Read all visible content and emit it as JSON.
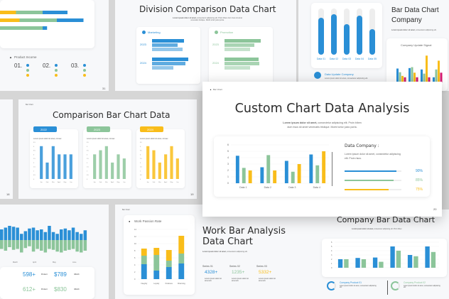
{
  "colors": {
    "blue": "#2a8fd6",
    "green": "#8cc59a",
    "yellow": "#f9bd1a",
    "pink": "#d81b6f",
    "track": "#eeeeee"
  },
  "slide_top_left": {
    "section": "Product Income",
    "items": [
      "01.",
      "02.",
      "03."
    ],
    "page": "31",
    "hbars": [
      [
        0.18,
        0.3,
        0.28
      ],
      [
        0.22,
        0.42,
        0.3
      ],
      [
        0,
        0.48,
        0.05
      ]
    ]
  },
  "slide_division": {
    "title": "Division Comparison Data Chart",
    "subtitle_bold": "Lorem ipsum dolor sit amet,",
    "subtitle": "consectetur adipiscing elit. Proin biben dum risus sit amet venenatis tristique. Morbi tortor justo porta.",
    "panels": [
      {
        "label": "Marketing",
        "color": "#2a8fd6",
        "years": [
          "2023",
          "2024"
        ],
        "values": [
          [
            0.75,
            0.6,
            0.72
          ],
          [
            0.85,
            0.78,
            0.5
          ]
        ]
      },
      {
        "label": "Promotion",
        "color": "#8cc59a",
        "years": [
          "2023",
          "2024"
        ],
        "values": [
          [
            0.85,
            0.7,
            0.6
          ],
          [
            0.8,
            0.82,
            0.6
          ]
        ]
      }
    ]
  },
  "slide_bar_company": {
    "title_line1": "Bar Data Chart",
    "title_line2": "Company",
    "subtitle_bold": "Lorem ipsum dolor sit amet,",
    "subtitle": "consectetur adipiscing elit.",
    "vbars": [
      {
        "label": "Data 01",
        "fill": 0.8
      },
      {
        "label": "Data 02",
        "fill": 0.88
      },
      {
        "label": "Data 03",
        "fill": 0.66
      },
      {
        "label": "Data 04",
        "fill": 0.85
      },
      {
        "label": "Data 05",
        "fill": 0.56
      }
    ],
    "info_title": "Data Update Company",
    "info_text": "Lorem ipsum dolor sit amet, consectetur adipiscing elit.",
    "signal_title": "Company Update Signal",
    "signal": [
      [
        3,
        2.2,
        1.4,
        1.1
      ],
      [
        3.1,
        3.3,
        2.1,
        1.1
      ],
      [
        2.8,
        1.9,
        5.8,
        1.1
      ],
      [
        1.1,
        2.8,
        4.7,
        2.1
      ]
    ]
  },
  "slide_comparison": {
    "tag": "Bar Chart",
    "title": "Comparison Bar Chart Data",
    "page_left": "18",
    "page_right": "19",
    "months": [
      "Jan",
      "Feb",
      "Mar",
      "April",
      "May",
      "Jun"
    ],
    "yticks": [
      "4.5",
      "4",
      "3.5",
      "3",
      "2.5",
      "2",
      "1.5",
      "1",
      "0.5",
      "0"
    ],
    "panels": [
      {
        "year": "2022",
        "color": "#2a8fd6",
        "text": "Lorem ipsum dolor sit amet, consec",
        "values": [
          4,
          2,
          4,
          3,
          3,
          3
        ]
      },
      {
        "year": "2023",
        "color": "#8cc59a",
        "text": "Lorem ipsum dolor sit amet, consec",
        "values": [
          3,
          3.5,
          4,
          2,
          3,
          2.5
        ]
      },
      {
        "year": "2024",
        "color": "#f9bd1a",
        "text": "Lorem ipsum dolor sit amet, consec",
        "values": [
          4,
          3.5,
          2,
          3,
          4,
          2.5
        ]
      }
    ]
  },
  "main": {
    "tag": "Bar Chart",
    "title": "Custom Chart Data Analysis",
    "subtitle_bold": "Lorem ipsum dolor sit amet,",
    "subtitle_1": " consectetur adipiscing elit. Proin biben",
    "subtitle_2": "dum risus sit amet venenatis tristique. Morbi tortor justo porta.",
    "page": "20",
    "right_title": "Data Company :",
    "right_text_1": "Lorem ipsum dolor sit amet, consectetur adipiscing",
    "right_text_2": "elit. Proin risus.",
    "progress": [
      {
        "value": 90,
        "label": "90%",
        "color": "#2a8fd6"
      },
      {
        "value": 85,
        "label": "85%",
        "color": "#8cc59a"
      },
      {
        "value": 75,
        "label": "75%",
        "color": "#f9bd1a"
      }
    ]
  },
  "chart_data": [
    {
      "type": "bar",
      "categories": [
        "Data 1",
        "Data 2",
        "Data 3",
        "Data 4"
      ],
      "ylim": [
        0,
        6
      ],
      "yticks": [
        "6",
        "5",
        "4",
        "3",
        "2",
        "1",
        "0"
      ],
      "series": [
        {
          "values": [
            4.3,
            2.5,
            3.5,
            4.5
          ],
          "color": "#2a8fd6"
        },
        {
          "values": [
            2.4,
            4.4,
            1.8,
            2.8
          ],
          "color": "#8cc59a"
        },
        {
          "values": [
            2.0,
            2.0,
            3.0,
            5.0
          ],
          "color": "#f9bd1a"
        }
      ]
    },
    {
      "type": "bar",
      "stacked": true,
      "title": "Work Passion Rate",
      "categories": [
        "Integrity",
        "Loyalty",
        "Kindness",
        "Charming"
      ],
      "ylim": [
        0,
        14
      ],
      "yticks": [
        "14",
        "12",
        "10",
        "8",
        "6",
        "4",
        "2",
        "0"
      ],
      "series": [
        {
          "name": "Series 01",
          "values": [
            4.2,
            2.4,
            3.4,
            4.4
          ],
          "color": "#2a8fd6"
        },
        {
          "name": "Series 02",
          "values": [
            2.4,
            4.4,
            1.8,
            2.8
          ],
          "color": "#8cc59a"
        },
        {
          "name": "Series 03",
          "values": [
            2.0,
            2.0,
            3.0,
            5.0
          ],
          "color": "#f9bd1a"
        }
      ]
    },
    {
      "type": "bar",
      "ylim": [
        0,
        6
      ],
      "yticks": [
        "6",
        "5",
        "4",
        "3",
        "2",
        "1",
        "0"
      ],
      "series": [
        {
          "values": [
            2,
            2.3,
            2.4,
            5,
            3,
            5
          ],
          "color": "#2a8fd6"
        },
        {
          "values": [
            2,
            2,
            1.4,
            4,
            2.7,
            3.7
          ],
          "color": "#8cc59a"
        }
      ]
    }
  ],
  "slide_work": {
    "tag": "Bar Chart",
    "title_line1": "Work Bar Analysis",
    "title_line2": "Data Chart",
    "subtitle_bold": "Lorem ipsum dolor sit amet,",
    "subtitle": "consectetur adipiscing elit.",
    "stats": [
      {
        "name": "Series 01",
        "value": "4328+",
        "color": "#2a8fd6",
        "text": "Lorem ipsum dolor sit amet elit."
      },
      {
        "name": "Series 02",
        "value": "1235+",
        "color": "#8cc59a",
        "text": "Lorem ipsum dolor sit amet elit."
      },
      {
        "name": "Series 03",
        "value": "5332+",
        "color": "#f9bd1a",
        "text": "Lorem ipsum dolor sit amet elit."
      }
    ]
  },
  "slide_company": {
    "title": "Company Bar Data Chart",
    "subtitle_bold": "Lorem ipsum dolor sit amet,",
    "subtitle": "consectetur adipiscing elit. Proin biben",
    "products": [
      {
        "name": "Company Product 01",
        "color": "#2a8fd6",
        "text": "Lorem ipsum dolor sit amet, consectetur adipiscing elit."
      },
      {
        "name": "Company Product 02",
        "color": "#8cc59a",
        "text": "Lorem ipsum dolor sit amet, consectetur adipiscing elit."
      }
    ]
  },
  "slide_bottom_left": {
    "months": [
      "March",
      "April",
      "May",
      "June"
    ],
    "rows": [
      {
        "value": "598+",
        "unit": "Product",
        "price": "$789",
        "per": "/Month",
        "color": "#2a8fd6"
      },
      {
        "value": "612+",
        "unit": "Product",
        "price": "$830",
        "per": "/Month",
        "color": "#8cc59a"
      }
    ],
    "up": [
      0.6,
      0.7,
      0.8,
      0.75,
      0.7,
      0.35,
      0.5,
      0.65,
      0.7,
      0.55,
      0.6,
      0.45,
      0.8,
      0.45,
      0.35,
      0.6,
      0.65,
      0.55,
      0.7,
      0.45,
      0.35,
      0.55
    ],
    "down": [
      0.5,
      0.6,
      0.4,
      0.55,
      0.5,
      0.7,
      0.45,
      0.35,
      0.65,
      0.5,
      0.6,
      0.7,
      0.5,
      0.55,
      0.65,
      0.7,
      0.6,
      0.55,
      0.5,
      0.65,
      0.7,
      0.6
    ]
  }
}
